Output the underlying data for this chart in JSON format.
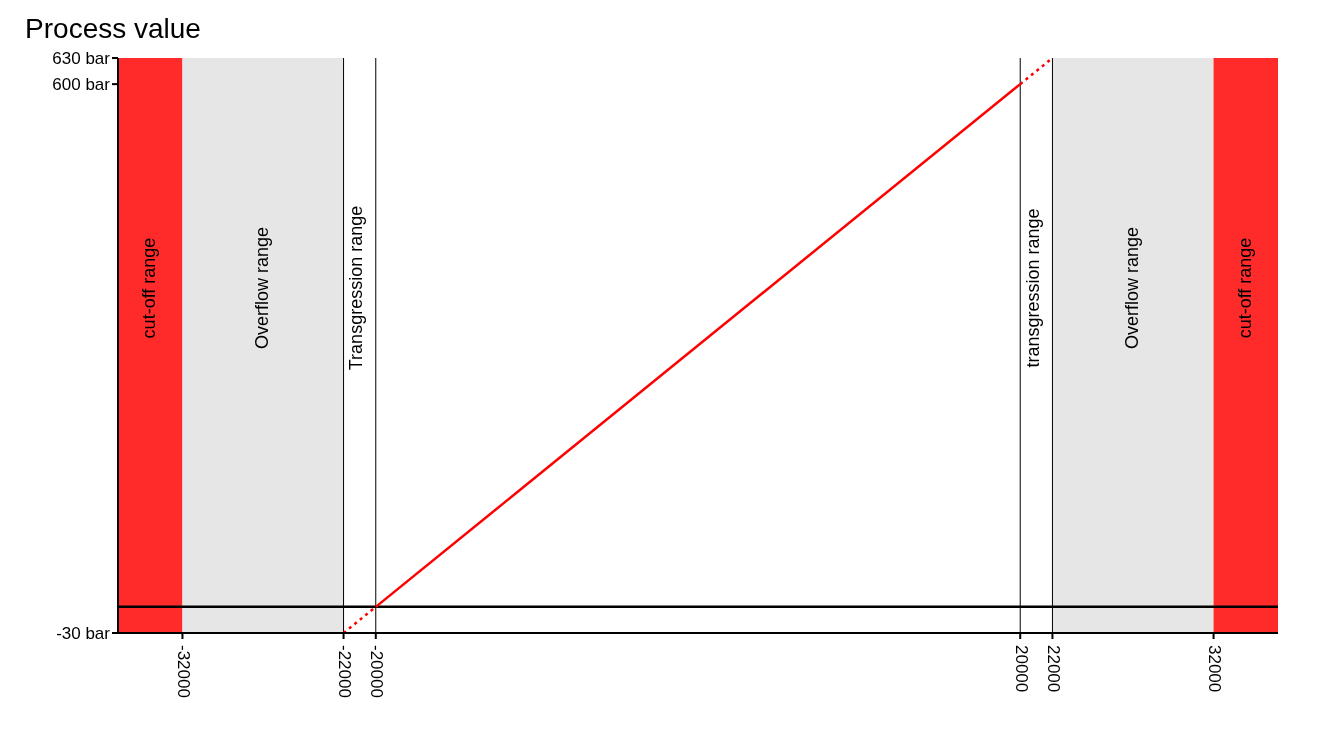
{
  "chart_data": {
    "type": "line",
    "ylabel": "Process value",
    "xlim": [
      -36000,
      36000
    ],
    "xticks": [
      -32000,
      -22000,
      -20000,
      20000,
      22000,
      32000
    ],
    "ylim": [
      -30,
      630
    ],
    "yticks": [
      {
        "value": -30,
        "label": "-30 bar"
      },
      {
        "value": 600,
        "label": "600 bar"
      },
      {
        "value": 630,
        "label": "630 bar"
      }
    ],
    "series": [
      {
        "color": "#ff0000",
        "x": [
          -20000,
          20000
        ],
        "values": [
          0,
          600
        ],
        "line_style": "solid"
      },
      {
        "color": "#ff0000",
        "x": [
          -22000,
          -20000,
          0,
          20000,
          22000
        ],
        "values": [
          -30,
          0,
          null,
          600,
          630
        ],
        "line_style": "dotted"
      }
    ],
    "bands": [
      {
        "axis": "x",
        "from": -36000,
        "to": -32000,
        "label": "cut-off range",
        "color": "#ff2a2a"
      },
      {
        "axis": "x",
        "from": -32000,
        "to": -22000,
        "label": "Overflow range",
        "color": "#e6e6e6"
      },
      {
        "axis": "x",
        "from": 22000,
        "to": 32000,
        "label": "Overflow range",
        "color": "#e6e6e6"
      },
      {
        "axis": "x",
        "from": 32000,
        "to": 36000,
        "label": "cut-off range",
        "color": "#ff2a2a"
      }
    ],
    "ref_lines": [
      {
        "axis": "x",
        "value": -22000,
        "label": "Transgression range"
      },
      {
        "axis": "x",
        "value": -20000
      },
      {
        "axis": "x",
        "value": 20000,
        "label": "transgression range"
      },
      {
        "axis": "x",
        "value": 22000
      },
      {
        "axis": "y",
        "value": 0,
        "line_style": "solid"
      }
    ]
  }
}
